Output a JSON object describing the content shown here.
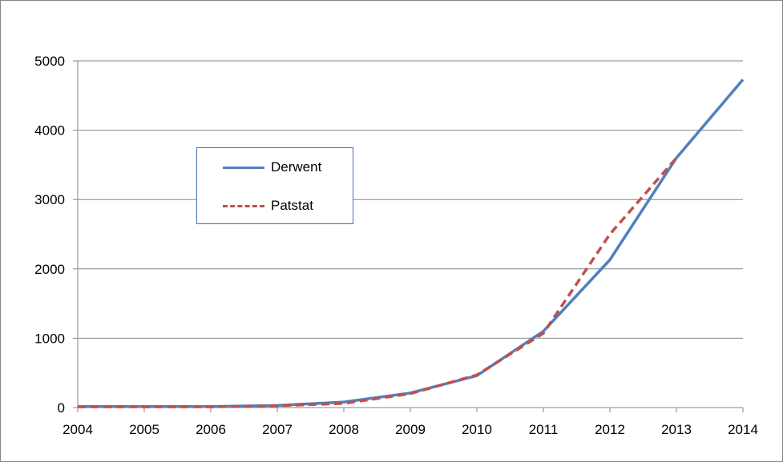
{
  "chart_data": {
    "type": "line",
    "title": "",
    "xlabel": "",
    "ylabel": "",
    "x": [
      2004,
      2005,
      2006,
      2007,
      2008,
      2009,
      2010,
      2011,
      2012,
      2013,
      2014
    ],
    "xlim": [
      2004,
      2014
    ],
    "ylim": [
      0,
      5000
    ],
    "yticks": [
      0,
      1000,
      2000,
      3000,
      4000,
      5000
    ],
    "grid": "horizontal",
    "legend_position": "upper-left-center",
    "series": [
      {
        "name": "Derwent",
        "color": "#4f81bd",
        "style": "solid",
        "x": [
          2004,
          2005,
          2006,
          2007,
          2008,
          2009,
          2010,
          2011,
          2012,
          2013,
          2014
        ],
        "values": [
          15,
          15,
          15,
          30,
          80,
          210,
          460,
          1100,
          2130,
          3600,
          4730
        ]
      },
      {
        "name": "Patstat",
        "color": "#c0504d",
        "style": "dashed",
        "x": [
          2004,
          2005,
          2006,
          2007,
          2008,
          2009,
          2010,
          2011,
          2012,
          2013
        ],
        "values": [
          10,
          10,
          10,
          25,
          60,
          200,
          470,
          1070,
          2500,
          3600
        ]
      }
    ]
  }
}
